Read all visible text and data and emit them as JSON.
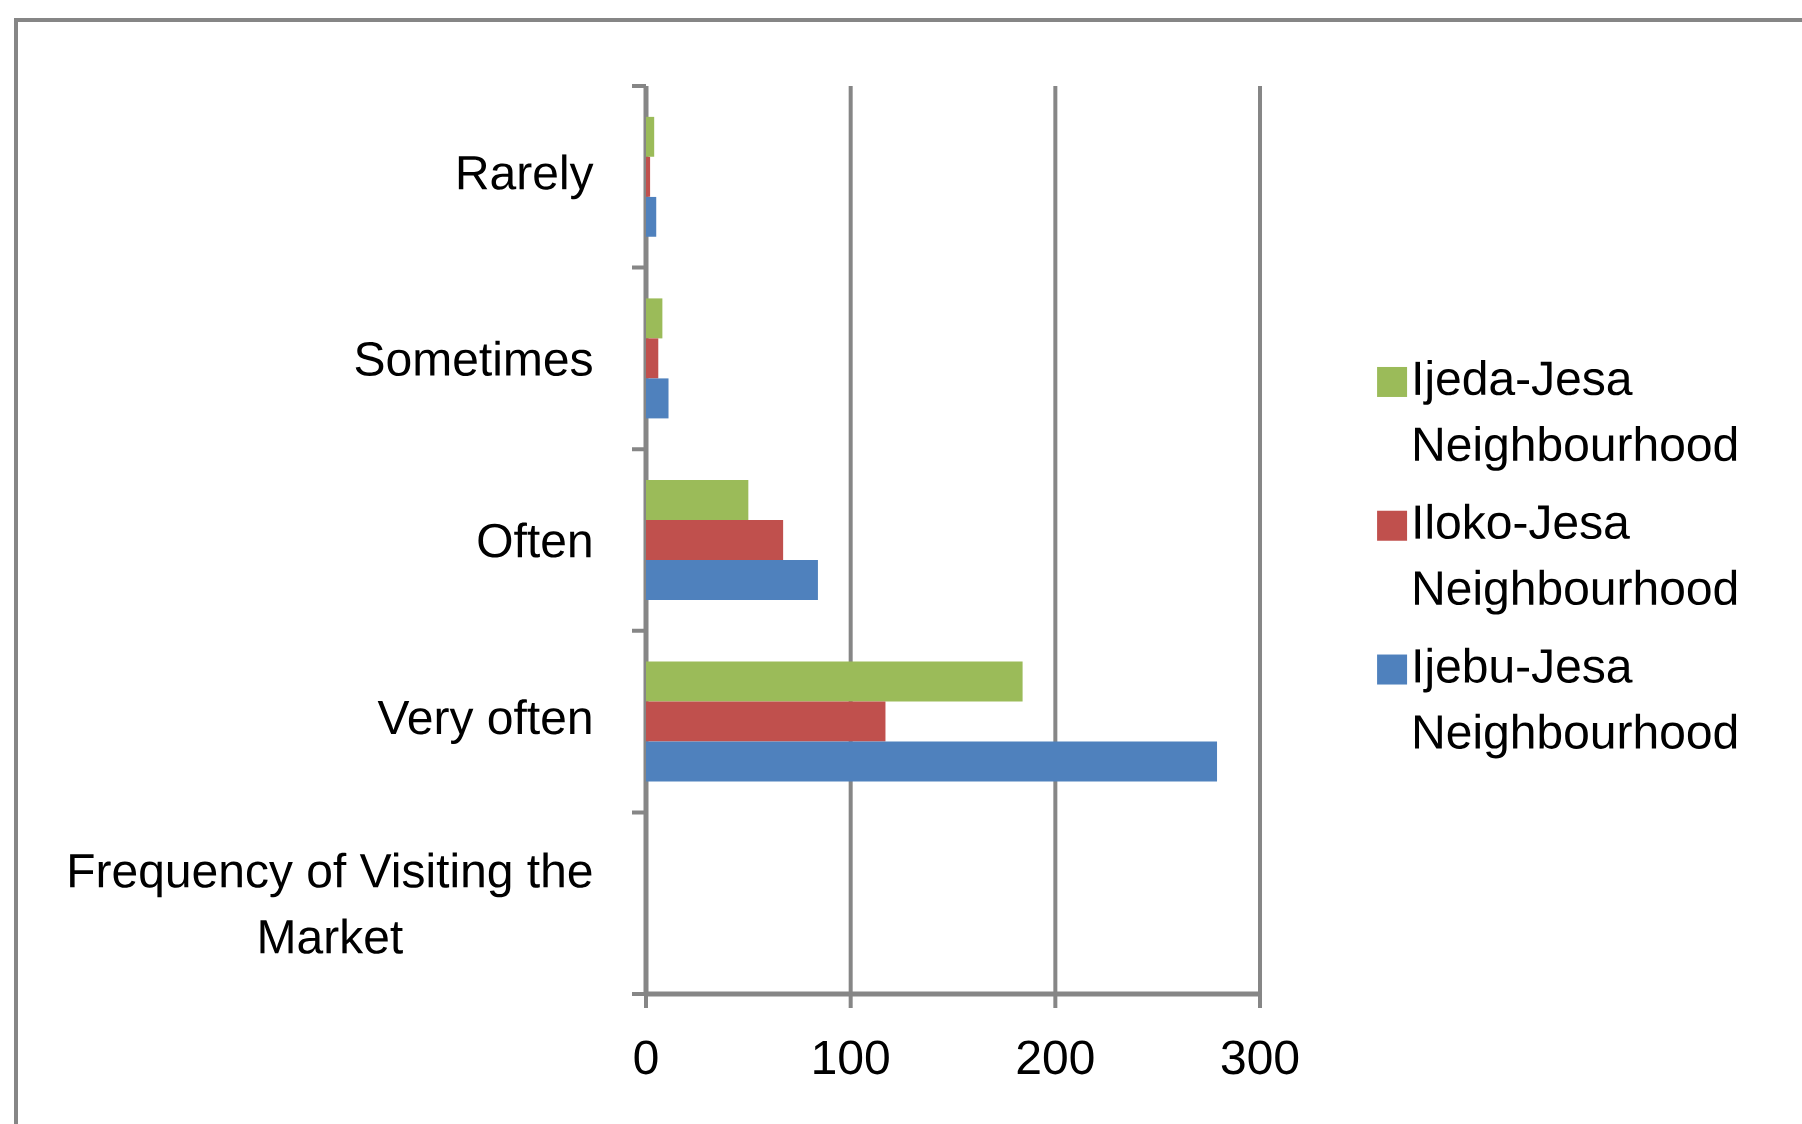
{
  "chart_data": {
    "type": "bar",
    "orientation": "horizontal",
    "categories": [
      "Rarely",
      "Sometimes",
      "Often",
      "Very often",
      "Frequency of Visiting the Market"
    ],
    "series": [
      {
        "name": "Ijeda-Jesa Neighbourhood",
        "color": "#9bbb59",
        "values": [
          4,
          8,
          50,
          184,
          null
        ]
      },
      {
        "name": "Iloko-Jesa Neighbourhood",
        "color": "#c0504d",
        "values": [
          2,
          6,
          67,
          117,
          null
        ]
      },
      {
        "name": "Ijebu-Jesa Neighbourhood",
        "color": "#4f81bd",
        "values": [
          5,
          11,
          84,
          279,
          null
        ]
      }
    ],
    "xlim": [
      0,
      300
    ],
    "xticks": [
      0,
      100,
      200,
      300
    ],
    "grid": "x",
    "legend": "right"
  }
}
